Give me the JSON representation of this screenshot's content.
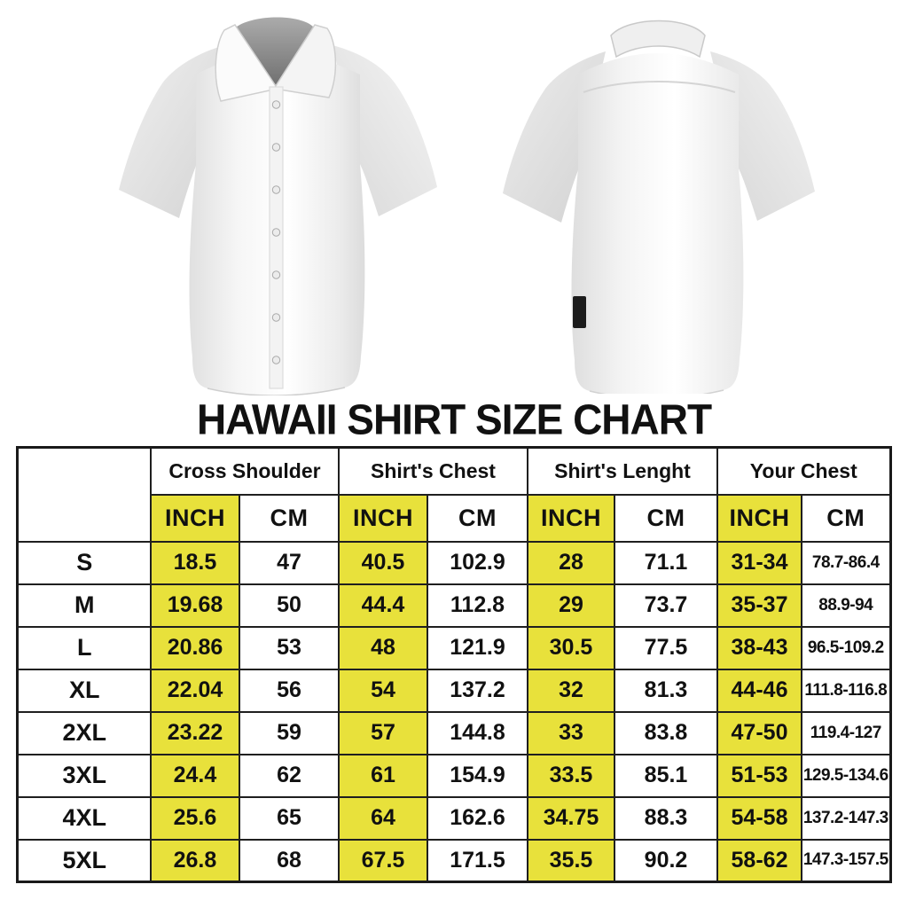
{
  "title": "HAWAII SHIRT SIZE CHART",
  "colors": {
    "highlight_yellow": "#e8e13b",
    "table_border_black": "#1a1a1a",
    "shirt_white": "#f7f7f7"
  },
  "table": {
    "groups": [
      "Cross Shoulder",
      "Shirt's Chest",
      "Shirt's Lenght",
      "Your Chest"
    ],
    "unit_inch": "INCH",
    "unit_cm": "CM",
    "rows": [
      {
        "size": "S",
        "values": [
          "18.5",
          "47",
          "40.5",
          "102.9",
          "28",
          "71.1",
          "31-34",
          "78.7-86.4"
        ]
      },
      {
        "size": "M",
        "values": [
          "19.68",
          "50",
          "44.4",
          "112.8",
          "29",
          "73.7",
          "35-37",
          "88.9-94"
        ]
      },
      {
        "size": "L",
        "values": [
          "20.86",
          "53",
          "48",
          "121.9",
          "30.5",
          "77.5",
          "38-43",
          "96.5-109.2"
        ]
      },
      {
        "size": "XL",
        "values": [
          "22.04",
          "56",
          "54",
          "137.2",
          "32",
          "81.3",
          "44-46",
          "111.8-116.8"
        ]
      },
      {
        "size": "2XL",
        "values": [
          "23.22",
          "59",
          "57",
          "144.8",
          "33",
          "83.8",
          "47-50",
          "119.4-127"
        ]
      },
      {
        "size": "3XL",
        "values": [
          "24.4",
          "62",
          "61",
          "154.9",
          "33.5",
          "85.1",
          "51-53",
          "129.5-134.6"
        ]
      },
      {
        "size": "4XL",
        "values": [
          "25.6",
          "65",
          "64",
          "162.6",
          "34.75",
          "88.3",
          "54-58",
          "137.2-147.3"
        ]
      },
      {
        "size": "5XL",
        "values": [
          "26.8",
          "68",
          "67.5",
          "171.5",
          "35.5",
          "90.2",
          "58-62",
          "147.3-157.5"
        ]
      }
    ]
  }
}
